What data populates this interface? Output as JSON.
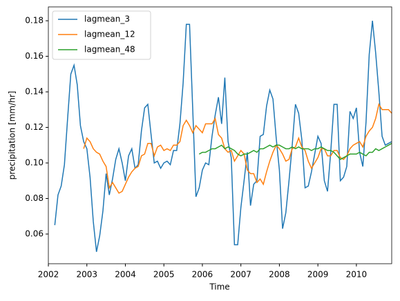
{
  "chart_data": {
    "type": "line",
    "xlabel": "Time",
    "ylabel": "precipitation [mm/hr]",
    "x": [
      2002,
      2002.083,
      2002.167,
      2002.25,
      2002.333,
      2002.417,
      2002.5,
      2002.583,
      2002.667,
      2002.75,
      2002.833,
      2002.917,
      2003,
      2003.083,
      2003.167,
      2003.25,
      2003.333,
      2003.417,
      2003.5,
      2003.583,
      2003.667,
      2003.75,
      2003.833,
      2003.917,
      2004,
      2004.083,
      2004.167,
      2004.25,
      2004.333,
      2004.417,
      2004.5,
      2004.583,
      2004.667,
      2004.75,
      2004.833,
      2004.917,
      2005,
      2005.083,
      2005.167,
      2005.25,
      2005.333,
      2005.417,
      2005.5,
      2005.583,
      2005.667,
      2005.75,
      2005.833,
      2005.917,
      2006,
      2006.083,
      2006.167,
      2006.25,
      2006.333,
      2006.417,
      2006.5,
      2006.583,
      2006.667,
      2006.75,
      2006.833,
      2006.917,
      2007,
      2007.083,
      2007.167,
      2007.25,
      2007.333,
      2007.417,
      2007.5,
      2007.583,
      2007.667,
      2007.75,
      2007.833,
      2007.917,
      2008,
      2008.083,
      2008.167,
      2008.25,
      2008.333,
      2008.417,
      2008.5,
      2008.583,
      2008.667,
      2008.75,
      2008.833,
      2008.917,
      2009,
      2009.083,
      2009.167,
      2009.25,
      2009.333,
      2009.417,
      2009.5,
      2009.583,
      2009.667,
      2009.75,
      2009.833,
      2009.917,
      2010,
      2010.083,
      2010.167,
      2010.25,
      2010.333,
      2010.417,
      2010.5,
      2010.583,
      2010.667,
      2010.75,
      2010.833,
      2010.917
    ],
    "series": [
      {
        "name": "lagmean_3",
        "color": "#1f77b4",
        "values": [
          null,
          null,
          0.065,
          0.082,
          0.087,
          0.099,
          0.125,
          0.15,
          0.155,
          0.144,
          0.121,
          0.112,
          0.108,
          0.092,
          0.067,
          0.05,
          0.059,
          0.073,
          0.094,
          0.082,
          0.091,
          0.102,
          0.108,
          0.1,
          0.09,
          0.104,
          0.108,
          0.097,
          0.099,
          0.118,
          0.131,
          0.133,
          0.116,
          0.1,
          0.101,
          0.097,
          0.1,
          0.101,
          0.099,
          0.107,
          0.107,
          0.122,
          0.145,
          0.178,
          0.178,
          0.13,
          0.081,
          0.086,
          0.096,
          0.1,
          0.099,
          0.115,
          0.127,
          0.137,
          0.122,
          0.148,
          0.112,
          0.103,
          0.054,
          0.054,
          0.075,
          0.09,
          0.106,
          0.076,
          0.088,
          0.09,
          0.115,
          0.116,
          0.132,
          0.141,
          0.136,
          0.114,
          0.096,
          0.063,
          0.072,
          0.09,
          0.11,
          0.133,
          0.128,
          0.113,
          0.086,
          0.087,
          0.095,
          0.105,
          0.115,
          0.111,
          0.09,
          0.084,
          0.106,
          0.133,
          0.133,
          0.09,
          0.092,
          0.098,
          0.129,
          0.125,
          0.131,
          0.106,
          0.098,
          0.123,
          0.161,
          0.18,
          0.162,
          0.14,
          0.115,
          0.11,
          0.111,
          0.112
        ]
      },
      {
        "name": "lagmean_12",
        "color": "#ff7f0e",
        "values": [
          null,
          null,
          null,
          null,
          null,
          null,
          null,
          null,
          null,
          null,
          null,
          0.108,
          0.114,
          0.112,
          0.108,
          0.106,
          0.105,
          0.101,
          0.098,
          0.086,
          0.089,
          0.086,
          0.083,
          0.084,
          0.088,
          0.092,
          0.095,
          0.097,
          0.098,
          0.104,
          0.105,
          0.111,
          0.111,
          0.104,
          0.109,
          0.11,
          0.107,
          0.108,
          0.107,
          0.11,
          0.11,
          0.112,
          0.121,
          0.124,
          0.121,
          0.117,
          0.121,
          0.119,
          0.117,
          0.122,
          0.122,
          0.122,
          0.125,
          0.116,
          0.114,
          0.108,
          0.106,
          0.107,
          0.101,
          0.104,
          0.107,
          0.105,
          0.096,
          0.094,
          0.094,
          0.089,
          0.091,
          0.088,
          0.095,
          0.101,
          0.106,
          0.11,
          0.108,
          0.105,
          0.101,
          0.102,
          0.108,
          0.109,
          0.114,
          0.109,
          0.107,
          0.101,
          0.097,
          0.1,
          0.103,
          0.108,
          0.108,
          0.104,
          0.104,
          0.107,
          0.107,
          0.103,
          0.102,
          0.104,
          0.108,
          0.11,
          0.111,
          0.112,
          0.109,
          0.115,
          0.118,
          0.12,
          0.125,
          0.133,
          0.13,
          0.13,
          0.13,
          0.128
        ]
      },
      {
        "name": "lagmean_48",
        "color": "#2ca02c",
        "values": [
          null,
          null,
          null,
          null,
          null,
          null,
          null,
          null,
          null,
          null,
          null,
          null,
          null,
          null,
          null,
          null,
          null,
          null,
          null,
          null,
          null,
          null,
          null,
          null,
          null,
          null,
          null,
          null,
          null,
          null,
          null,
          null,
          null,
          null,
          null,
          null,
          null,
          null,
          null,
          null,
          null,
          null,
          null,
          null,
          null,
          null,
          null,
          0.105,
          0.106,
          0.106,
          0.107,
          0.108,
          0.108,
          0.109,
          0.11,
          0.108,
          0.109,
          0.108,
          0.107,
          0.105,
          0.104,
          0.105,
          0.105,
          0.106,
          0.107,
          0.106,
          0.108,
          0.108,
          0.109,
          0.11,
          0.109,
          0.11,
          0.11,
          0.109,
          0.108,
          0.108,
          0.109,
          0.108,
          0.109,
          0.108,
          0.108,
          0.108,
          0.107,
          0.108,
          0.108,
          0.109,
          0.108,
          0.107,
          0.107,
          0.106,
          0.104,
          0.102,
          0.103,
          0.104,
          0.105,
          0.105,
          0.105,
          0.106,
          0.105,
          0.104,
          0.106,
          0.106,
          0.108,
          0.107,
          0.108,
          0.109,
          0.11,
          0.111
        ]
      }
    ],
    "xlim": [
      2002,
      2010.917
    ],
    "xticks": [
      2002,
      2003,
      2004,
      2005,
      2006,
      2007,
      2008,
      2009,
      2010
    ],
    "ylim": [
      0.0433,
      0.1878
    ],
    "yticks": [
      0.06,
      0.08,
      {
        "value": 0.1,
        "label": "0.10"
      },
      0.12,
      0.14,
      0.16,
      0.18
    ],
    "legend": "upper left"
  }
}
